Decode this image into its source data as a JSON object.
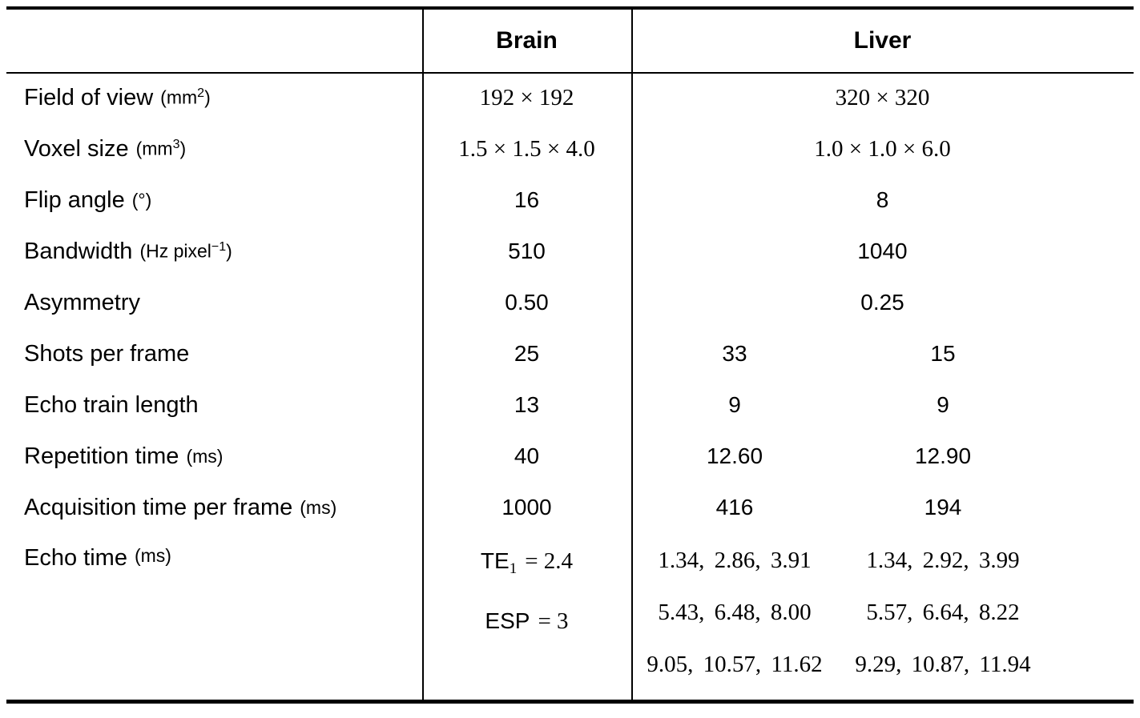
{
  "page": {
    "background": "#ffffff",
    "text_color": "#000000",
    "rule_color": "#000000"
  },
  "table": {
    "header": {
      "brain": "Brain",
      "liver": "Liver"
    },
    "rows": [
      {
        "label": "Field of view",
        "unit_pre": "(mm",
        "unit_sup": "2",
        "unit_post": ")",
        "brain": "192 × 192",
        "liver_merged": "320 × 320"
      },
      {
        "label": "Voxel size",
        "unit_pre": "(mm",
        "unit_sup": "3",
        "unit_post": ")",
        "brain": "1.5 × 1.5 × 4.0",
        "liver_merged": "1.0 × 1.0 × 6.0"
      },
      {
        "label": "Flip angle",
        "unit_pre": "(°)",
        "unit_sup": "",
        "unit_post": "",
        "brain": "16",
        "liver_merged": "8"
      },
      {
        "label": "Bandwidth",
        "unit_pre": "(Hz pixel",
        "unit_sup": "−1",
        "unit_post": ")",
        "brain": "510",
        "liver_merged": "1040"
      },
      {
        "label": "Asymmetry",
        "unit_pre": "",
        "unit_sup": "",
        "unit_post": "",
        "brain": "0.50",
        "liver_merged": "0.25"
      },
      {
        "label": "Shots per frame",
        "unit_pre": "",
        "unit_sup": "",
        "unit_post": "",
        "brain": "25",
        "liver_a": "33",
        "liver_b": "15"
      },
      {
        "label": "Echo train length",
        "unit_pre": "",
        "unit_sup": "",
        "unit_post": "",
        "brain": "13",
        "liver_a": "9",
        "liver_b": "9"
      },
      {
        "label": "Repetition time",
        "unit_pre": "(ms)",
        "unit_sup": "",
        "unit_post": "",
        "brain": "40",
        "liver_a": "12.60",
        "liver_b": "12.90"
      },
      {
        "label": "Acquisition time per frame",
        "unit_pre": "(ms)",
        "unit_sup": "",
        "unit_post": "",
        "brain": "1000",
        "liver_a": "416",
        "liver_b": "194"
      },
      {
        "label": "Echo time",
        "unit_pre": "(ms)",
        "unit_sup": "",
        "unit_post": "",
        "brain_te_prefix": "TE",
        "brain_te_sub": "1",
        "brain_te_value": "= 2.4",
        "brain_esp_prefix": "ESP",
        "brain_esp_value": "= 3",
        "liver_a_lines": [
          "1.34, 2.86, 3.91",
          "5.43, 6.48, 8.00",
          "9.05, 10.57, 11.62"
        ],
        "liver_b_lines": [
          "1.34, 2.92, 3.99",
          "5.57, 6.64, 8.22",
          "9.29, 10.87, 11.94"
        ]
      }
    ]
  }
}
